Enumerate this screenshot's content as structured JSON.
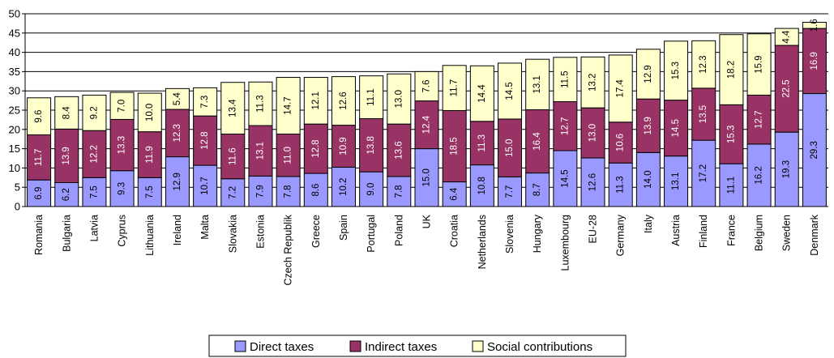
{
  "chart_data": {
    "type": "bar",
    "stacked": true,
    "title": "",
    "xlabel": "",
    "ylabel": "",
    "ylim": [
      0,
      50
    ],
    "yticks": [
      0,
      5,
      10,
      15,
      20,
      25,
      30,
      35,
      40,
      45,
      50
    ],
    "grid": true,
    "legend_position": "bottom",
    "categories": [
      "Romania",
      "Bulgaria",
      "Latvia",
      "Cyprus",
      "Lithuania",
      "Ireland",
      "Malta",
      "Slovakia",
      "Estonia",
      "Czech Republik",
      "Greece",
      "Spain",
      "Portugal",
      "Poland",
      "UK",
      "Croatia",
      "Netherlands",
      "Slovenia",
      "Hungary",
      "Luxembourg",
      "EU-28",
      "Germany",
      "Italy",
      "Austria",
      "Finland",
      "France",
      "Belgium",
      "Sweden",
      "Denmark"
    ],
    "series": [
      {
        "name": "Direct taxes",
        "color": "#9999ff",
        "values": [
          6.9,
          6.2,
          7.5,
          9.3,
          7.5,
          12.9,
          10.7,
          7.2,
          7.9,
          7.8,
          8.6,
          10.2,
          9.0,
          7.8,
          15.0,
          6.4,
          10.8,
          7.7,
          8.7,
          14.5,
          12.6,
          11.3,
          14.0,
          13.1,
          17.2,
          11.1,
          16.2,
          19.3,
          29.3
        ]
      },
      {
        "name": "Indirect taxes",
        "color": "#993366",
        "values": [
          11.7,
          13.9,
          12.2,
          13.3,
          11.9,
          12.3,
          12.8,
          11.6,
          13.1,
          11.0,
          12.8,
          10.9,
          13.8,
          13.6,
          12.4,
          18.5,
          11.3,
          15.0,
          16.4,
          12.7,
          13.0,
          10.6,
          13.9,
          14.5,
          13.5,
          15.3,
          12.7,
          22.5,
          16.9
        ]
      },
      {
        "name": "Social contributions",
        "color": "#ffffcc",
        "values": [
          9.6,
          8.4,
          9.2,
          7.0,
          10.0,
          5.4,
          7.3,
          13.4,
          11.3,
          14.7,
          12.1,
          12.6,
          11.1,
          13.0,
          7.6,
          11.7,
          14.4,
          14.5,
          13.1,
          11.5,
          13.2,
          17.4,
          12.9,
          15.3,
          12.3,
          18.2,
          15.9,
          4.4,
          1.6
        ]
      }
    ]
  }
}
